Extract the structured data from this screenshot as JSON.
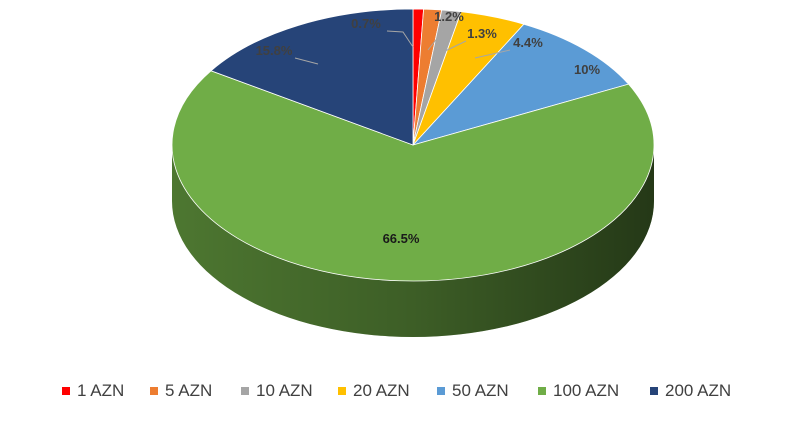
{
  "chart_data": {
    "type": "pie",
    "title": "",
    "three_d": true,
    "legend_position": "bottom",
    "series": [
      {
        "name": "1 AZN",
        "value": 0.7,
        "label": "0.7%",
        "color": "#ff0000"
      },
      {
        "name": "5 AZN",
        "value": 1.2,
        "label": "1.2%",
        "color": "#ed7d31"
      },
      {
        "name": "10 AZN",
        "value": 1.3,
        "label": "1.3%",
        "color": "#a5a5a5"
      },
      {
        "name": "20 AZN",
        "value": 4.4,
        "label": "4.4%",
        "color": "#ffc000"
      },
      {
        "name": "50 AZN",
        "value": 10,
        "label": "10%",
        "color": "#5b9bd5"
      },
      {
        "name": "100 AZN",
        "value": 66.5,
        "label": "66.5%",
        "color": "#70ad47"
      },
      {
        "name": "200 AZN",
        "value": 15.8,
        "label": "15.8%",
        "color": "#264478"
      }
    ]
  }
}
